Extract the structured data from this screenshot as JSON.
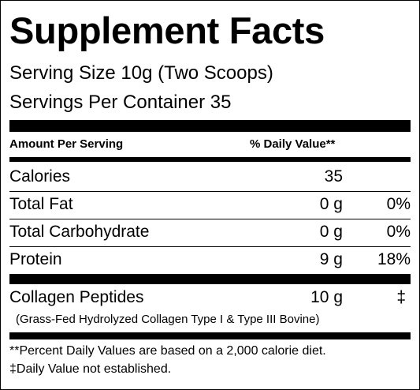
{
  "title": "Supplement Facts",
  "serving_size": "Serving Size 10g (Two Scoops)",
  "servings_per_container": "Servings Per Container  35",
  "header": {
    "amount_per_serving": "Amount Per Serving",
    "daily_value": "% Daily Value**"
  },
  "rows": [
    {
      "name": "Calories",
      "amount": "35",
      "dv": ""
    },
    {
      "name": "Total Fat",
      "amount": "0 g",
      "dv": "0%"
    },
    {
      "name": "Total Carbohydrate",
      "amount": "0 g",
      "dv": "0%"
    },
    {
      "name": "Protein",
      "amount": "9 g",
      "dv": "18%"
    }
  ],
  "collagen": {
    "name": "Collagen Peptides",
    "amount": "10 g",
    "dv": "‡",
    "description": "(Grass-Fed Hydrolyzed Collagen Type I & Type III Bovine)"
  },
  "footnotes": [
    "**Percent Daily Values are based on a 2,000 calorie diet.",
    "‡Daily Value not established."
  ]
}
